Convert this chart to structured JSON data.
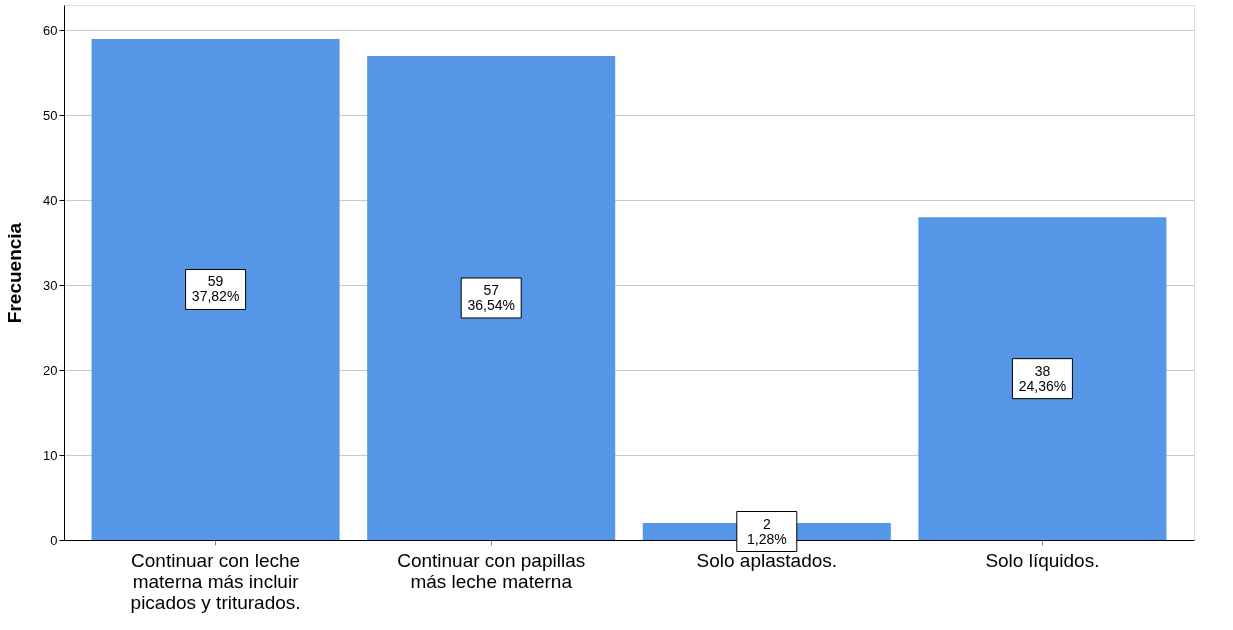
{
  "chart_data": {
    "type": "bar",
    "ylabel": "Frecuencia",
    "categories": [
      "Continuar con leche materna más incluir picados y triturados.",
      "Continuar con papillas más leche materna",
      "Solo aplastados.",
      "Solo líquidos."
    ],
    "values": [
      59,
      57,
      2,
      38
    ],
    "value_labels": [
      "59\n37,82%",
      "57\n36,54%",
      "2\n1,28%",
      "38\n24,36%"
    ],
    "color": "#5596e6",
    "ylim": [
      0,
      63
    ],
    "yticks": [
      0,
      10,
      20,
      30,
      40,
      50,
      60
    ],
    "grid": "y"
  }
}
